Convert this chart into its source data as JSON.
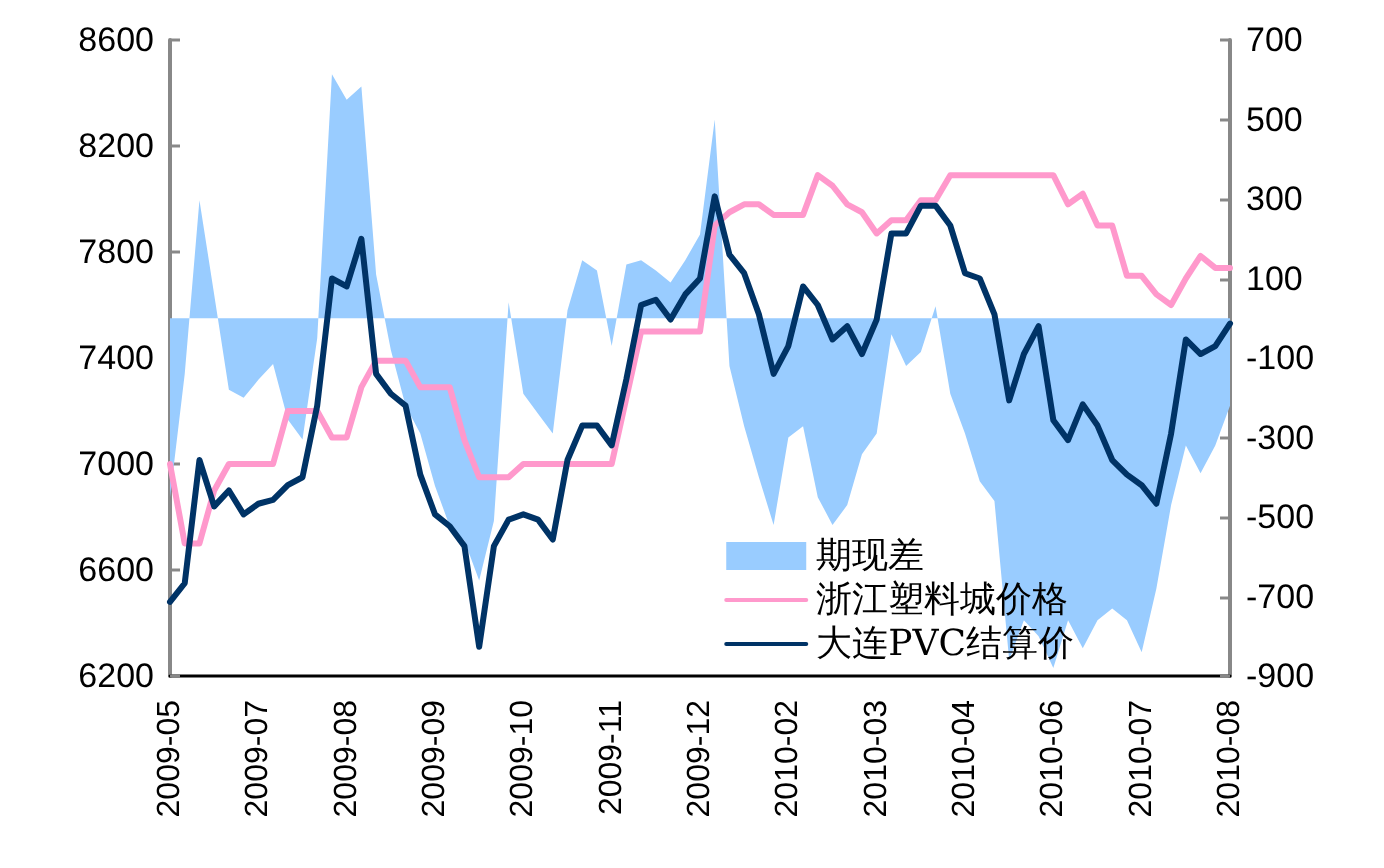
{
  "chart_data": {
    "type": "line",
    "categories": [
      "2009-05",
      null,
      null,
      null,
      null,
      null,
      "2009-07",
      null,
      null,
      null,
      null,
      null,
      "2009-08",
      null,
      null,
      null,
      null,
      null,
      "2009-09",
      null,
      null,
      null,
      null,
      null,
      "2009-10",
      null,
      null,
      null,
      null,
      null,
      "2009-11",
      null,
      null,
      null,
      null,
      null,
      "2009-12",
      null,
      null,
      null,
      null,
      null,
      "2010-02",
      null,
      null,
      null,
      null,
      null,
      "2010-03",
      null,
      null,
      null,
      null,
      null,
      "2010-04",
      null,
      null,
      null,
      null,
      null,
      "2010-06",
      null,
      null,
      null,
      null,
      null,
      "2010-07",
      null,
      null,
      null,
      null,
      null,
      "2010-08"
    ],
    "series": [
      {
        "name": "期现差",
        "type": "area",
        "axis": "y2",
        "color": "#99ccff",
        "values": [
          -450,
          -140,
          297,
          60,
          -180,
          -200,
          -155,
          -115,
          -255,
          -305,
          -50,
          614,
          550,
          583,
          110,
          -80,
          -220,
          -290,
          -422,
          -523,
          -560,
          -660,
          -510,
          40,
          -190,
          -240,
          -290,
          20,
          146,
          120,
          -70,
          135,
          146,
          120,
          90,
          146,
          211,
          500,
          -120,
          -272,
          -400,
          -520,
          -300,
          -272,
          -450,
          -520,
          -470,
          -342,
          -290,
          -40,
          -120,
          -85,
          30,
          -190,
          -290,
          -410,
          -460,
          -860,
          -760,
          -800,
          -880,
          -760,
          -830,
          -760,
          -730,
          -760,
          -840,
          -680,
          -470,
          -320,
          -390,
          -320,
          -220
        ]
      },
      {
        "name": "浙江塑料城价格",
        "color": "#ff99cc",
        "values": [
          7000,
          6700,
          6700,
          6900,
          7000,
          7000,
          7000,
          7000,
          7200,
          7200,
          7200,
          7100,
          7100,
          7290,
          7390,
          7390,
          7390,
          7290,
          7290,
          7290,
          7090,
          6950,
          6950,
          6950,
          7000,
          7000,
          7000,
          7000,
          7000,
          7000,
          7000,
          7250,
          7500,
          7500,
          7500,
          7500,
          7500,
          7900,
          7950,
          7980,
          7980,
          7940,
          7940,
          7940,
          8090,
          8050,
          7980,
          7950,
          7870,
          7920,
          7920,
          7995,
          7995,
          8090,
          8090,
          8090,
          8090,
          8090,
          8090,
          8090,
          8090,
          7980,
          8020,
          7900,
          7900,
          7710,
          7710,
          7640,
          7600,
          7700,
          7785,
          7740,
          7740
        ]
      },
      {
        "name": "大连PVC结算价",
        "color": "#003366",
        "values": [
          6480,
          6550,
          7015,
          6840,
          6900,
          6810,
          6850,
          6865,
          6920,
          6950,
          7220,
          7700,
          7670,
          7850,
          7340,
          7265,
          7220,
          6960,
          6810,
          6765,
          6690,
          6310,
          6690,
          6790,
          6810,
          6790,
          6715,
          7015,
          7145,
          7145,
          7070,
          7320,
          7600,
          7620,
          7545,
          7640,
          7700,
          8010,
          7790,
          7720,
          7565,
          7340,
          7445,
          7670,
          7600,
          7470,
          7520,
          7415,
          7545,
          7870,
          7870,
          7975,
          7975,
          7900,
          7720,
          7700,
          7565,
          7240,
          7415,
          7520,
          7165,
          7090,
          7225,
          7145,
          7015,
          6960,
          6920,
          6850,
          7115,
          7470,
          7415,
          7445,
          7530
        ]
      }
    ],
    "ylim": [
      6200,
      8600
    ],
    "yticks": [
      6200,
      6600,
      7000,
      7400,
      7800,
      8200,
      8600
    ],
    "y2lim": [
      -900,
      700
    ],
    "y2ticks": [
      -900,
      -700,
      -500,
      -300,
      -100,
      100,
      300,
      500,
      700
    ],
    "grid": false,
    "legend": "bottom right",
    "marker": "none",
    "line_style": "solid"
  }
}
